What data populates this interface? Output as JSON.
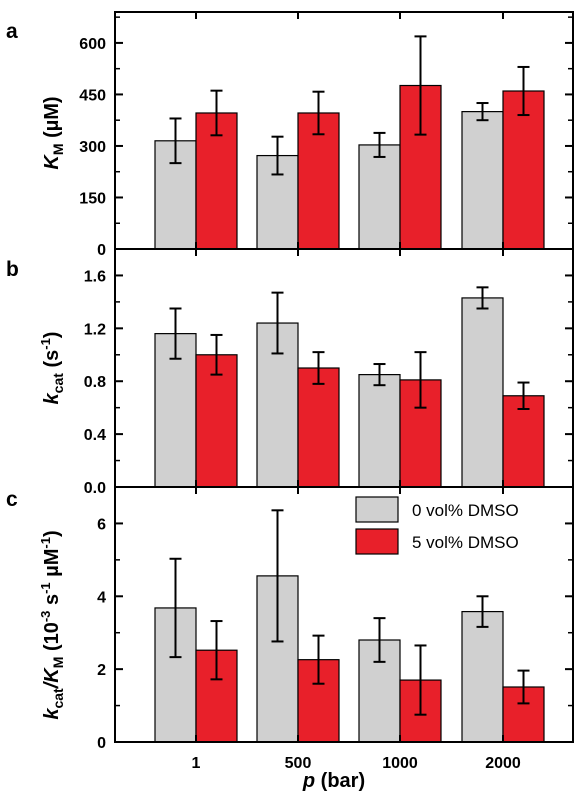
{
  "colors": {
    "grey": "#d0d0d0",
    "red": "#e8202a",
    "stroke": "#000000"
  },
  "chart_data": [
    {
      "panel": "a",
      "type": "bar",
      "categories": [
        "1",
        "500",
        "1000",
        "2000"
      ],
      "ylabel": "KM (µM)",
      "ylim": [
        0,
        690
      ],
      "yticks": [
        "0",
        "150",
        "300",
        "450",
        "600"
      ],
      "series": [
        {
          "name": "0 vol% DMSO",
          "values": [
            315,
            272,
            303,
            400
          ],
          "errors": [
            65,
            55,
            35,
            25
          ]
        },
        {
          "name": "5 vol% DMSO",
          "values": [
            396,
            396,
            476,
            460
          ],
          "errors": [
            65,
            62,
            143,
            70
          ]
        }
      ]
    },
    {
      "panel": "b",
      "type": "bar",
      "categories": [
        "1",
        "500",
        "1000",
        "2000"
      ],
      "ylabel": "kcat (s-1)",
      "ylim": [
        0,
        1.8
      ],
      "yticks": [
        "0.0",
        "0.4",
        "0.8",
        "1.2",
        "1.6"
      ],
      "series": [
        {
          "name": "0 vol% DMSO",
          "values": [
            1.16,
            1.24,
            0.85,
            1.43
          ],
          "errors": [
            0.19,
            0.23,
            0.08,
            0.08
          ]
        },
        {
          "name": "5 vol% DMSO",
          "values": [
            1.0,
            0.9,
            0.81,
            0.69
          ],
          "errors": [
            0.15,
            0.12,
            0.21,
            0.1
          ]
        }
      ]
    },
    {
      "panel": "c",
      "type": "bar",
      "categories": [
        "1",
        "500",
        "1000",
        "2000"
      ],
      "xlabel": "p (bar)",
      "ylabel": "kcat/KM (10-3 s-1 µM-1)",
      "ylim": [
        0,
        7
      ],
      "yticks": [
        "0",
        "2",
        "4",
        "6"
      ],
      "legend_position": "top-right",
      "series": [
        {
          "name": "0 vol% DMSO",
          "values": [
            3.68,
            4.56,
            2.8,
            3.58
          ],
          "errors": [
            1.35,
            1.8,
            0.6,
            0.42
          ]
        },
        {
          "name": "5 vol% DMSO",
          "values": [
            2.52,
            2.26,
            1.7,
            1.51
          ],
          "errors": [
            0.8,
            0.66,
            0.95,
            0.45
          ]
        }
      ]
    }
  ],
  "axis_labels": {
    "a_y_main": "K",
    "a_y_sub": "M",
    "a_y_tail": " (µM)",
    "b_y_main": "k",
    "b_y_sub": "cat",
    "b_y_mid": " (s",
    "b_y_sup": "-1",
    "b_y_tail": ")",
    "c_y_k": "k",
    "c_y_cat": "cat",
    "c_y_slash": "/K",
    "c_y_m": "M",
    "c_y_open": " (10",
    "c_y_exp1": "-3",
    "c_y_s": " s",
    "c_y_exp2": "-1",
    "c_y_um": " µM",
    "c_y_exp3": "-1",
    "c_y_close": ")",
    "x_p": "p",
    "x_rest": " (bar)"
  },
  "legend": {
    "item1": "0 vol% DMSO",
    "item2": "5 vol% DMSO"
  },
  "panel_letters": {
    "a": "a",
    "b": "b",
    "c": "c"
  }
}
